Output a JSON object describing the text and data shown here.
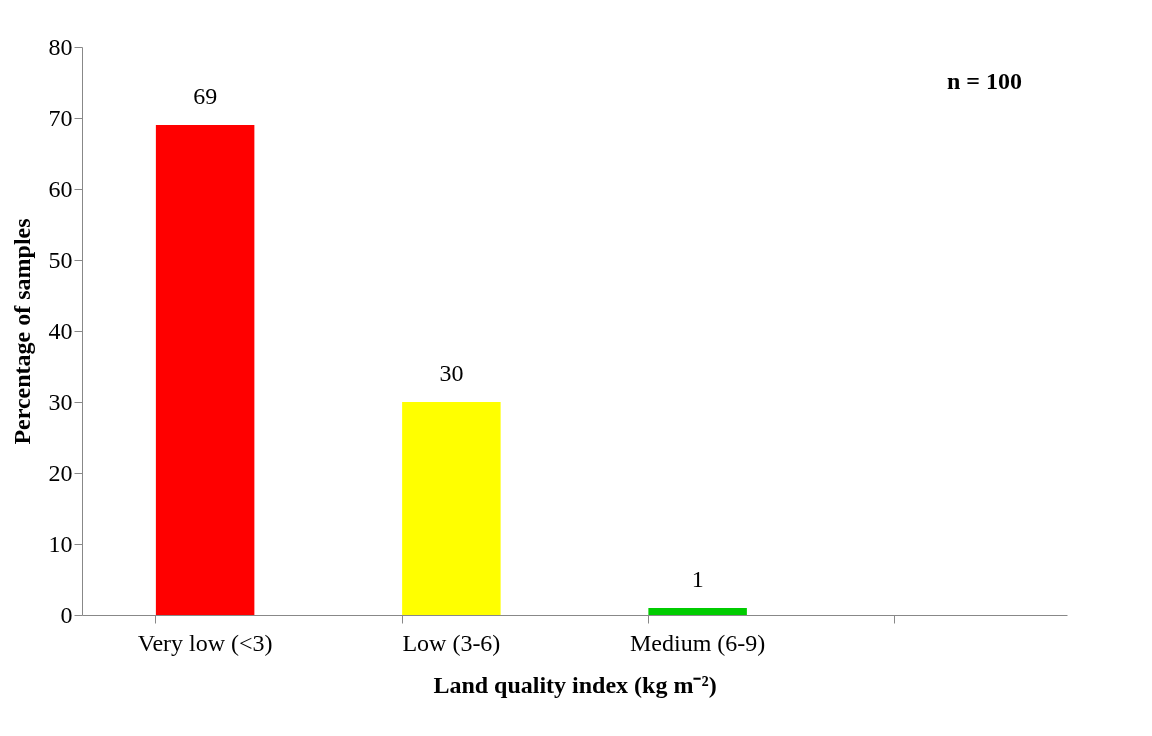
{
  "chart_data": {
    "type": "bar",
    "xlabel": "Land quality index (kg m⁻²)",
    "ylabel": "Percentage of samples",
    "categories": [
      "Very low (<3)",
      "Low (3-6)",
      "Medium (6-9)",
      null
    ],
    "values": [
      69,
      30,
      1,
      null
    ],
    "colors": [
      "#ff0000",
      "#ffff00",
      "#00cc00",
      "#808080"
    ],
    "ylim": [
      0,
      80
    ],
    "yticks": [
      0,
      10,
      20,
      30,
      40,
      50,
      60,
      70,
      80
    ],
    "data_labels": true,
    "grid": false,
    "annotations": [
      "n = 100"
    ]
  }
}
